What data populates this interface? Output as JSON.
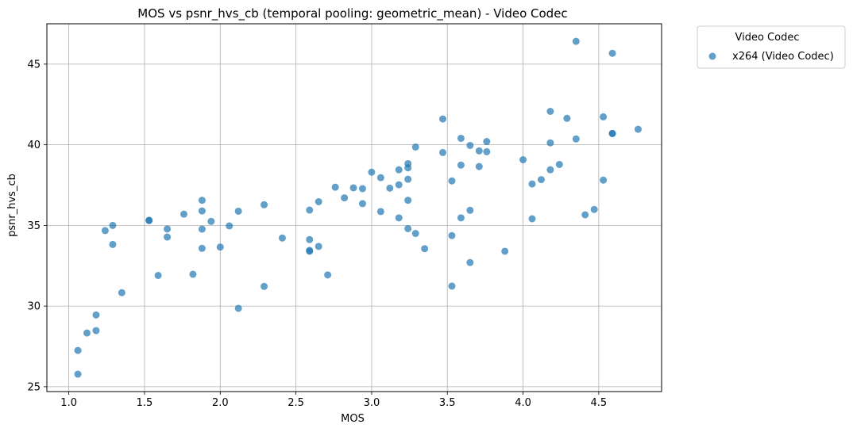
{
  "chart_data": {
    "type": "scatter",
    "title": "MOS vs psnr_hvs_cb (temporal pooling: geometric_mean) - Video Codec",
    "xlabel": "MOS",
    "ylabel": "psnr_hvs_cb",
    "xlim": [
      0.855,
      4.915
    ],
    "ylim": [
      24.7,
      47.5
    ],
    "xticks": [
      1.0,
      1.5,
      2.0,
      2.5,
      3.0,
      3.5,
      4.0,
      4.5
    ],
    "xtick_labels": [
      "1.0",
      "1.5",
      "2.0",
      "2.5",
      "3.0",
      "3.5",
      "4.0",
      "4.5"
    ],
    "yticks": [
      25,
      30,
      35,
      40,
      45
    ],
    "ytick_labels": [
      "25",
      "30",
      "35",
      "40",
      "45"
    ],
    "grid": true,
    "legend": {
      "title": "Video Codec",
      "placement": "outside-top-right"
    },
    "series": [
      {
        "name": "x264 (Video Codec)",
        "color": "#1f77b4",
        "points": [
          [
            1.06,
            27.25
          ],
          [
            1.06,
            25.78
          ],
          [
            1.12,
            28.33
          ],
          [
            1.18,
            29.45
          ],
          [
            1.18,
            28.48
          ],
          [
            1.24,
            34.68
          ],
          [
            1.29,
            35.0
          ],
          [
            1.29,
            33.82
          ],
          [
            1.35,
            30.83
          ],
          [
            1.53,
            35.3
          ],
          [
            1.53,
            35.32
          ],
          [
            1.59,
            31.9
          ],
          [
            1.65,
            34.78
          ],
          [
            1.65,
            34.28
          ],
          [
            1.76,
            35.7
          ],
          [
            1.82,
            31.97
          ],
          [
            1.88,
            36.56
          ],
          [
            1.88,
            35.9
          ],
          [
            1.88,
            34.77
          ],
          [
            1.88,
            33.58
          ],
          [
            1.94,
            35.25
          ],
          [
            2.0,
            33.66
          ],
          [
            2.06,
            34.97
          ],
          [
            2.12,
            35.88
          ],
          [
            2.12,
            29.86
          ],
          [
            2.29,
            36.28
          ],
          [
            2.29,
            31.22
          ],
          [
            2.41,
            34.22
          ],
          [
            2.59,
            35.95
          ],
          [
            2.59,
            34.12
          ],
          [
            2.59,
            33.4
          ],
          [
            2.59,
            33.45
          ],
          [
            2.65,
            36.47
          ],
          [
            2.65,
            33.7
          ],
          [
            2.71,
            31.93
          ],
          [
            2.76,
            37.37
          ],
          [
            2.82,
            36.71
          ],
          [
            2.88,
            37.33
          ],
          [
            2.94,
            37.28
          ],
          [
            2.94,
            36.35
          ],
          [
            3.0,
            38.3
          ],
          [
            3.06,
            37.96
          ],
          [
            3.06,
            35.86
          ],
          [
            3.12,
            37.31
          ],
          [
            3.18,
            38.45
          ],
          [
            3.18,
            37.52
          ],
          [
            3.18,
            35.47
          ],
          [
            3.24,
            38.83
          ],
          [
            3.24,
            38.57
          ],
          [
            3.24,
            37.86
          ],
          [
            3.24,
            36.56
          ],
          [
            3.24,
            34.8
          ],
          [
            3.29,
            39.86
          ],
          [
            3.29,
            34.5
          ],
          [
            3.35,
            33.56
          ],
          [
            3.47,
            41.6
          ],
          [
            3.47,
            39.52
          ],
          [
            3.53,
            37.76
          ],
          [
            3.53,
            34.37
          ],
          [
            3.53,
            31.24
          ],
          [
            3.59,
            40.4
          ],
          [
            3.59,
            38.74
          ],
          [
            3.59,
            35.47
          ],
          [
            3.65,
            39.96
          ],
          [
            3.65,
            35.94
          ],
          [
            3.65,
            32.7
          ],
          [
            3.71,
            39.62
          ],
          [
            3.71,
            38.65
          ],
          [
            3.76,
            40.2
          ],
          [
            3.76,
            39.57
          ],
          [
            3.88,
            33.4
          ],
          [
            4.0,
            39.07
          ],
          [
            4.06,
            37.57
          ],
          [
            4.06,
            35.41
          ],
          [
            4.12,
            37.84
          ],
          [
            4.18,
            42.07
          ],
          [
            4.18,
            40.12
          ],
          [
            4.18,
            38.45
          ],
          [
            4.24,
            38.78
          ],
          [
            4.29,
            41.64
          ],
          [
            4.35,
            46.41
          ],
          [
            4.35,
            40.36
          ],
          [
            4.41,
            35.66
          ],
          [
            4.47,
            35.99
          ],
          [
            4.53,
            41.73
          ],
          [
            4.53,
            37.81
          ],
          [
            4.59,
            45.67
          ],
          [
            4.59,
            40.7
          ],
          [
            4.59,
            40.7
          ],
          [
            4.76,
            40.96
          ]
        ]
      }
    ]
  }
}
